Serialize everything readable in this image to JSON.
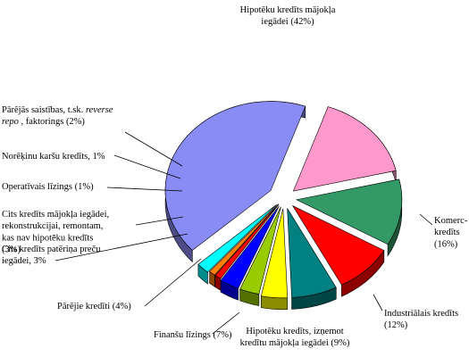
{
  "chart_data": {
    "type": "pie",
    "title": "",
    "exploded": true,
    "three_d": true,
    "slices": [
      {
        "label": "Hipotēku kredīts mājokļa iegādei (42%)",
        "value": 42,
        "color": "#8a8cf5",
        "lines": [
          "Hipotēku kredīts mājokļa",
          "iegādei (42%)"
        ]
      },
      {
        "label": "Komerc-kredīts (16%)",
        "value": 16,
        "color": "#ff99cc",
        "lines": [
          "Komerc-",
          "kredīts",
          "(16%)"
        ]
      },
      {
        "label": "Industriālais kredīts (12%)",
        "value": 12,
        "color": "#339966",
        "lines": [
          "Industriālais kredīts",
          "(12%)"
        ]
      },
      {
        "label": "Hipotēku kredīts, izņemot kredītu mājokļa iegādei (9%)",
        "value": 9,
        "color": "#ff0000",
        "lines": [
          "Hipotēku kredīts, izņemot",
          "kredītu mājokļa iegādei (9%)"
        ]
      },
      {
        "label": "Finanšu līzings (7%)",
        "value": 7,
        "color": "#008080",
        "lines": [
          "Finanšu līzings (7%)"
        ]
      },
      {
        "label": "Pārējie kredīti (4%)",
        "value": 4,
        "color": "#ffff00",
        "lines": [
          "Pārējie kredīti (4%)"
        ]
      },
      {
        "label": "Cits kredīts patēriņa preču iegādei, 3%",
        "value": 3,
        "color": "#99cc00",
        "lines": [
          "Cits kredīts patēriņa preču",
          "iegādei, 3%"
        ]
      },
      {
        "label": "Cits kredīts mājokļa iegādei, rekonstrukcijai, remontam, kas nav hipotēku kredīts (3%)",
        "value": 3,
        "color": "#0000ff",
        "lines": [
          "Cits kredīts mājokļa iegādei,",
          "rekonstrukcijai, remontam,",
          "kas nav hipotēku kredīts",
          "(3%)"
        ]
      },
      {
        "label": "Operatīvais līzings (1%)",
        "value": 1,
        "color": "#ff0000",
        "lines": [
          "Operatīvais līzings (1%)"
        ]
      },
      {
        "label": "Norēķinu karšu kredīts, 1%",
        "value": 1,
        "color": "#ff8000",
        "lines": [
          "Norēķinu karšu kredīts, 1%"
        ]
      },
      {
        "label": "Pārējās saistības, t.sk. reverse repo, faktorings (2%)",
        "value": 2,
        "color": "#00ffff",
        "lines": [
          "Pārējās saistības, t.sk. reverse",
          "repo , faktorings (2%)"
        ],
        "italic_words": [
          "reverse",
          "repo"
        ]
      }
    ]
  }
}
